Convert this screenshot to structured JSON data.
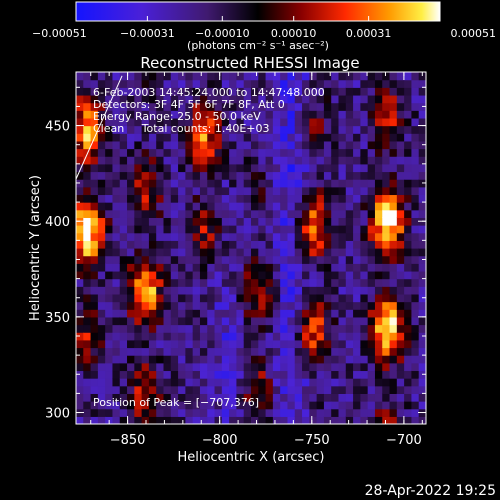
{
  "chart_data": {
    "type": "heatmap",
    "title": "Reconstructed RHESSI Image",
    "xlabel": "Heliocentric X (arcsec)",
    "ylabel": "Heliocentric Y (arcsec)",
    "xlim": [
      -878,
      -688
    ],
    "ylim": [
      294,
      478
    ],
    "xticks": [
      -850,
      -800,
      -750,
      -700
    ],
    "xtick_labels": [
      "−850",
      "−800",
      "−750",
      "−700"
    ],
    "yticks": [
      300,
      350,
      400,
      450
    ],
    "ytick_labels": [
      "300",
      "350",
      "400",
      "450"
    ],
    "colorbar": {
      "range": [
        -0.00051,
        0.00051
      ],
      "ticks": [
        -0.00051,
        -0.00031,
        -0.0001,
        0.0001,
        0.00031,
        0.00051
      ],
      "tick_labels": [
        "−0.00051",
        "−0.00031",
        "−0.00010",
        "0.00010",
        "0.00031",
        "0.00051"
      ],
      "unit_label": "(photons cm⁻² s⁻¹ asec⁻²)",
      "colormap": "blue-black-red-yellow-white"
    },
    "annotations": [
      "6-Feb-2003 14:45:24.000 to 14:47:48.000",
      "Detectors: 3F 4F 5F 6F 7F 8F, Att 0",
      "Energy Range: 25.0 - 50.0 keV",
      "Clean     Total counts: 1.40E+03"
    ],
    "peak_label": "Position of Peak = [−707,376]",
    "peak": [
      -707,
      376
    ],
    "ridges": [
      {
        "x": -872,
        "y_center": 410,
        "y_half_width": 70,
        "intensity": 1.0
      },
      {
        "x": -840,
        "y_center": 360,
        "y_half_width": 70,
        "intensity": 0.82
      },
      {
        "x": -808,
        "y_center": 430,
        "y_half_width": 45,
        "intensity": 0.7
      },
      {
        "x": -778,
        "y_center": 340,
        "y_half_width": 70,
        "intensity": 0.5
      },
      {
        "x": -748,
        "y_center": 380,
        "y_half_width": 70,
        "intensity": 0.78
      },
      {
        "x": -707,
        "y_center": 376,
        "y_half_width": 85,
        "intensity": 1.0
      }
    ],
    "limb_line": [
      [
        -878,
        422
      ],
      [
        -853,
        476
      ]
    ]
  },
  "footer": {
    "timestamp": "28-Apr-2022 19:25"
  }
}
